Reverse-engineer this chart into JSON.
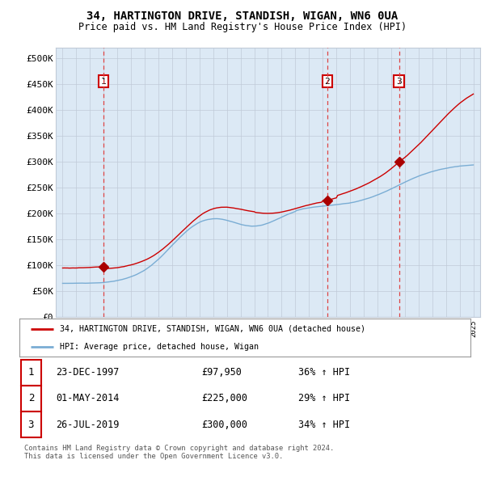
{
  "title1": "34, HARTINGTON DRIVE, STANDISH, WIGAN, WN6 0UA",
  "title2": "Price paid vs. HM Land Registry's House Price Index (HPI)",
  "plot_bg_color": "#dce9f5",
  "red_line_color": "#cc0000",
  "blue_line_color": "#7aadd4",
  "sale_marker_color": "#aa0000",
  "vline_color": "#dd4444",
  "grid_color": "#c0cad8",
  "ylim": [
    0,
    520000
  ],
  "yticks": [
    0,
    50000,
    100000,
    150000,
    200000,
    250000,
    300000,
    350000,
    400000,
    450000,
    500000
  ],
  "ytick_labels": [
    "£0",
    "£50K",
    "£100K",
    "£150K",
    "£200K",
    "£250K",
    "£300K",
    "£350K",
    "£400K",
    "£450K",
    "£500K"
  ],
  "xmin": 1995,
  "xmax": 2025,
  "sales": [
    {
      "date_num": 1997.98,
      "price": 97950,
      "label": "1"
    },
    {
      "date_num": 2014.33,
      "price": 225000,
      "label": "2"
    },
    {
      "date_num": 2019.57,
      "price": 300000,
      "label": "3"
    }
  ],
  "legend_line1": "34, HARTINGTON DRIVE, STANDISH, WIGAN, WN6 0UA (detached house)",
  "legend_line2": "HPI: Average price, detached house, Wigan",
  "table_data": [
    {
      "label": "1",
      "date": "23-DEC-1997",
      "price": "£97,950",
      "hpi": "36% ↑ HPI"
    },
    {
      "label": "2",
      "date": "01-MAY-2014",
      "price": "£225,000",
      "hpi": "29% ↑ HPI"
    },
    {
      "label": "3",
      "date": "26-JUL-2019",
      "price": "£300,000",
      "hpi": "34% ↑ HPI"
    }
  ],
  "footer": "Contains HM Land Registry data © Crown copyright and database right 2024.\nThis data is licensed under the Open Government Licence v3.0."
}
